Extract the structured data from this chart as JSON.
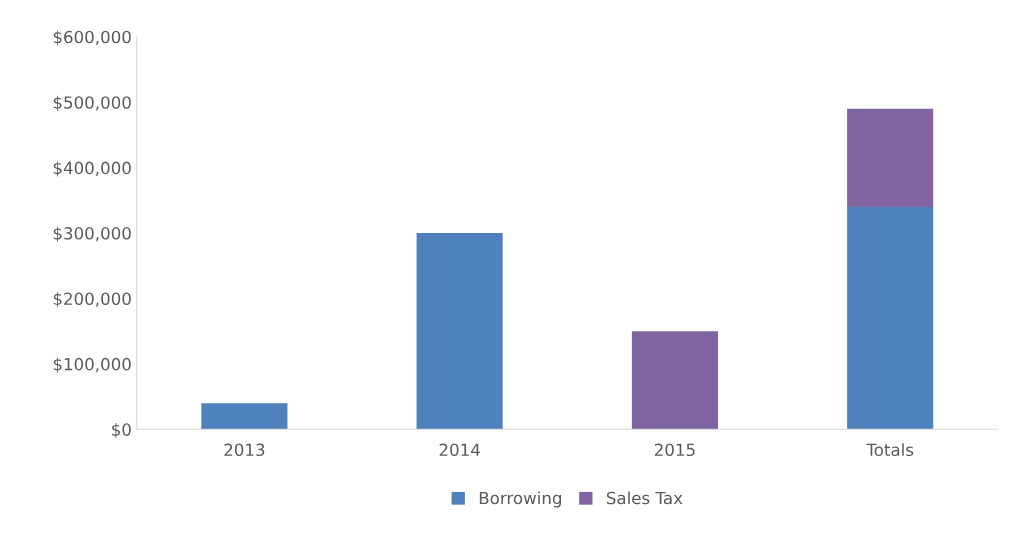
{
  "chart_data": {
    "type": "bar",
    "stacked": true,
    "categories": [
      "2013",
      "2014",
      "2015",
      "Totals"
    ],
    "series": [
      {
        "name": "Borrowing",
        "color": "#4f81bd",
        "values": [
          40000,
          300000,
          null,
          340000
        ]
      },
      {
        "name": "Sales Tax",
        "color": "#8064a2",
        "values": [
          null,
          null,
          150000,
          150000
        ]
      }
    ],
    "ylim": [
      0,
      600000
    ],
    "yticks": [
      {
        "value": 0,
        "label": "$0"
      },
      {
        "value": 100000,
        "label": "$100,000"
      },
      {
        "value": 200000,
        "label": "$200,000"
      },
      {
        "value": 300000,
        "label": "$300,000"
      },
      {
        "value": 400000,
        "label": "$400,000"
      },
      {
        "value": 500000,
        "label": "$500,000"
      },
      {
        "value": 600000,
        "label": "$600,000"
      }
    ],
    "grid": false,
    "legend": "bottom"
  }
}
